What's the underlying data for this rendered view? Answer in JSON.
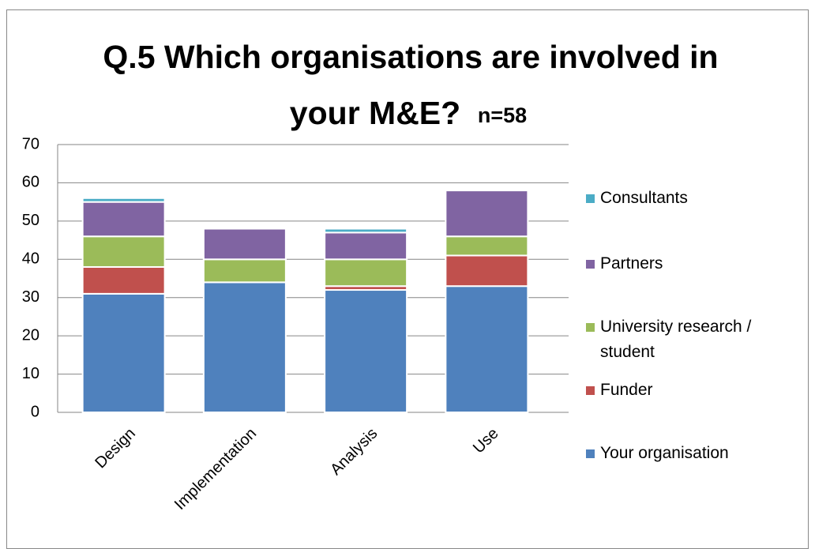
{
  "chart_data": {
    "type": "stacked_bar",
    "title_lines": [
      "Q.5 Which organisations are involved in",
      "your M&E?"
    ],
    "subtitle": "n=58",
    "categories": [
      "Design",
      "Implementation",
      "Analysis",
      "Use"
    ],
    "series": [
      {
        "name": "Your organisation",
        "color": "#4f81bd",
        "values": [
          31,
          34,
          32,
          33
        ]
      },
      {
        "name": "Funder",
        "color": "#c0504d",
        "values": [
          7,
          0,
          1,
          8
        ]
      },
      {
        "name": "University research / student",
        "color": "#9bbb59",
        "values": [
          8,
          6,
          7,
          5
        ]
      },
      {
        "name": "Partners",
        "color": "#8064a2",
        "values": [
          9,
          8,
          7,
          12
        ]
      },
      {
        "name": "Consultants",
        "color": "#4bacc6",
        "values": [
          1,
          0,
          1,
          0
        ]
      }
    ],
    "ylim": [
      0,
      70
    ],
    "yticks": [
      0,
      10,
      20,
      30,
      40,
      50,
      60,
      70
    ],
    "grid": true,
    "legend": "right"
  }
}
